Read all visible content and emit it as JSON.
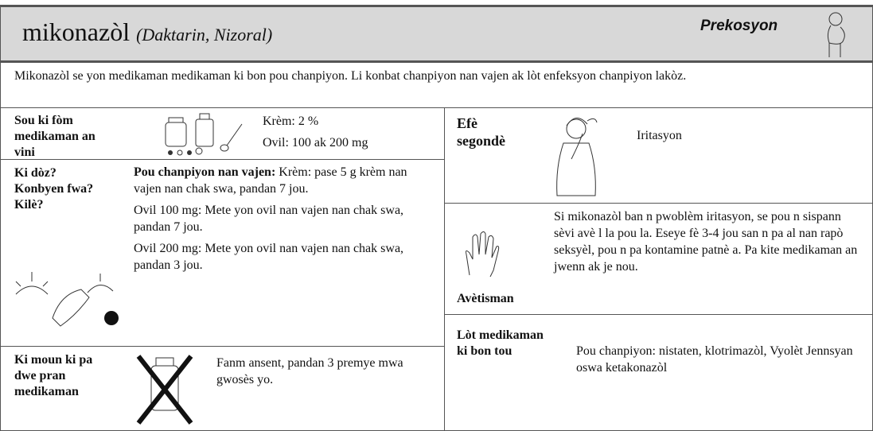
{
  "header": {
    "title": "mikonazòl",
    "brands": "(Daktarin, Nizoral)",
    "badge": "Prekosyon"
  },
  "intro": "Mikonazòl se yon medikaman medikaman ki bon pou chanpiyon.  Li konbat chanpiyon nan vajen ak lòt enfeksyon chanpiyon lakòz.",
  "sections": {
    "forms": {
      "label": "Sou ki fòm medikaman an vini",
      "items": [
        "Krèm: 2 %",
        "Ovil: 100 ak 200 mg"
      ]
    },
    "dosage": {
      "label": "Ki dòz? Konbyen fwa?  Kilè?",
      "lead": "Pou chanpiyon nan vajen:",
      "items": [
        "Krèm:  pase 5 g krèm nan vajen nan chak swa, pandan 7 jou.",
        "Ovil 100 mg:  Mete yon ovil nan vajen nan chak swa, pandan 7 jou.",
        "Ovil 200 mg:  Mete yon ovil nan vajen nan chak swa, pandan 3 jou."
      ]
    },
    "contraindications": {
      "label": "Ki moun ki pa dwe pran medikaman",
      "text": "Fanm ansent, pandan 3 premye mwa gwosès yo."
    },
    "side_effects": {
      "label": "Efè segondè",
      "text": "Iritasyon"
    },
    "warnings": {
      "label": "Avètisman",
      "text": "Si mikonazòl ban n pwoblèm iritasyon, se pou n sispann sèvi avè l la pou la.  Eseye fè 3-4 jou san n pa al nan rapò seksyèl, pou n pa kontamine patnè a.  Pa kite medikaman an jwenn ak je nou."
    },
    "alternatives": {
      "label": "Lòt medikaman ki bon tou",
      "text": "Pou chanpiyon:  nistaten, klotrimazòl, Vyolèt Jennsyan oswa ketakonazòl"
    }
  }
}
